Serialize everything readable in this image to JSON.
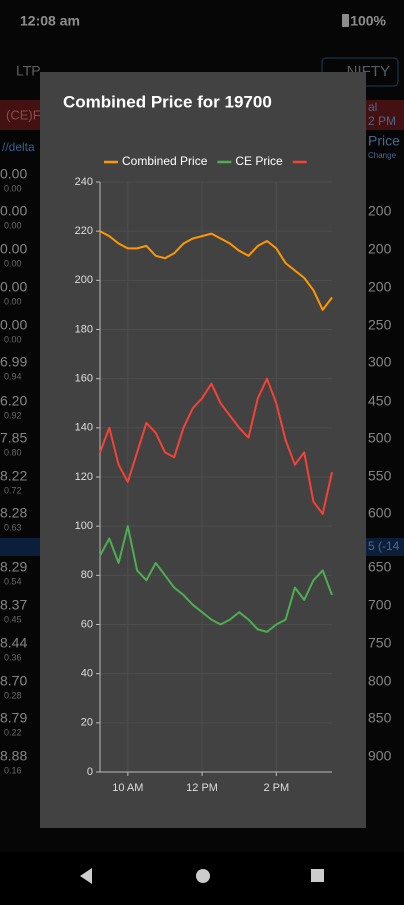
{
  "status_bar": {
    "time": "12:08 am",
    "battery": "100%"
  },
  "background": {
    "ltp": "LTP",
    "symbol": "NIFTY",
    "ce_tab": "(CE)F",
    "link": "//delta",
    "right_header": [
      "al",
      "2 PM",
      "Price",
      "Change"
    ],
    "strike_row": "5  (-14",
    "left_rows": [
      [
        "0.00",
        "0.00"
      ],
      [
        "0.00",
        "0.00"
      ],
      [
        "0.00",
        "0.00"
      ],
      [
        "0.00",
        "0.00"
      ],
      [
        "0.00",
        "0.00"
      ],
      [
        "6.99",
        "0.94"
      ],
      [
        "6.20",
        "0.92"
      ],
      [
        "7.85",
        "0.80"
      ],
      [
        "8.22",
        "0.72"
      ],
      [
        "8.28",
        "0.63"
      ],
      [
        "8.29",
        "0.54"
      ],
      [
        "8.37",
        "0.45"
      ],
      [
        "8.44",
        "0.36"
      ],
      [
        "8.70",
        "0.28"
      ],
      [
        "8.79",
        "0.22"
      ],
      [
        "8.88",
        "0.16"
      ]
    ],
    "right_rows": [
      "200",
      "200",
      "200",
      "250",
      "300",
      "450",
      "500",
      "550",
      "600",
      "650",
      "700",
      "750",
      "800",
      "850",
      "900"
    ]
  },
  "chart_data": {
    "type": "line",
    "title": "Combined Price for 19700",
    "x": [
      9.25,
      9.5,
      9.75,
      10,
      10.25,
      10.5,
      10.75,
      11,
      11.25,
      11.5,
      11.75,
      12,
      12.25,
      12.5,
      12.75,
      13,
      13.25,
      13.5,
      13.75,
      14,
      14.25,
      14.5,
      14.75,
      15,
      15.25,
      15.5
    ],
    "xlim": [
      9.25,
      15.5
    ],
    "xticks": [
      {
        "value": 10,
        "label": "10 AM"
      },
      {
        "value": 12,
        "label": "12 PM"
      },
      {
        "value": 14,
        "label": "2 PM"
      }
    ],
    "ylim": [
      0,
      240
    ],
    "yticks": [
      0,
      20,
      40,
      60,
      80,
      100,
      120,
      140,
      160,
      180,
      200,
      220,
      240
    ],
    "grid": true,
    "series": [
      {
        "name": "Combined Price",
        "color": "#ff9800",
        "values": [
          220,
          218,
          215,
          213,
          213,
          214,
          210,
          209,
          211,
          215,
          217,
          218,
          219,
          217,
          215,
          212,
          210,
          214,
          216,
          213,
          207,
          204,
          201,
          196,
          188,
          193
        ]
      },
      {
        "name": "CE Price",
        "color": "#4caf50",
        "values": [
          88,
          95,
          85,
          100,
          82,
          78,
          85,
          80,
          75,
          72,
          68,
          65,
          62,
          60,
          62,
          65,
          62,
          58,
          57,
          60,
          62,
          75,
          70,
          78,
          82,
          72
        ]
      },
      {
        "color": "#f44336",
        "values": [
          130,
          140,
          125,
          118,
          130,
          142,
          138,
          130,
          128,
          140,
          148,
          152,
          158,
          150,
          145,
          140,
          136,
          152,
          160,
          150,
          135,
          125,
          130,
          110,
          105,
          122
        ]
      }
    ]
  }
}
